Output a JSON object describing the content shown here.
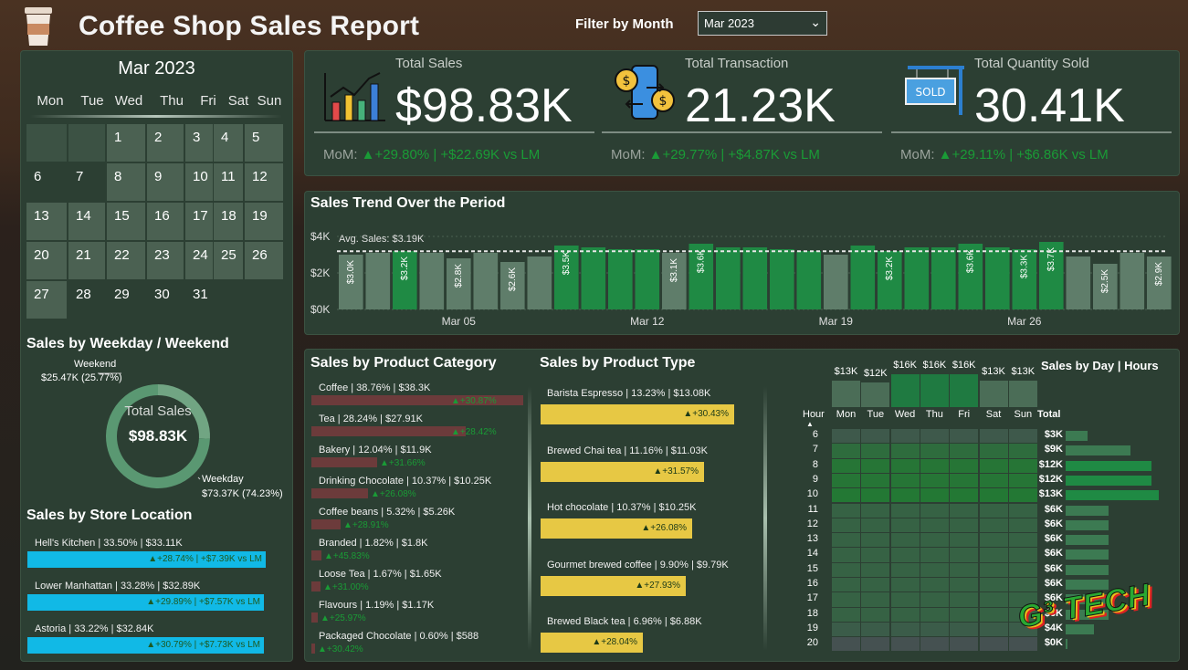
{
  "header": {
    "title": "Coffee Shop Sales Report",
    "filter_label": "Filter by Month",
    "filter_value": "Mar 2023"
  },
  "calendar": {
    "title": "Mar 2023",
    "weekdays": [
      "Mon",
      "Tue",
      "Wed",
      "Thu",
      "Fri",
      "Sat",
      "Sun"
    ],
    "days": [
      "1",
      "2",
      "3",
      "4",
      "5",
      "6",
      "7",
      "8",
      "9",
      "10",
      "11",
      "12",
      "13",
      "14",
      "15",
      "16",
      "17",
      "18",
      "19",
      "20",
      "21",
      "22",
      "23",
      "24",
      "25",
      "26",
      "27",
      "28",
      "29",
      "30",
      "31"
    ]
  },
  "kpis": [
    {
      "label": "Total Sales",
      "value": "$98.83K",
      "mom_prefix": "MoM:",
      "mom_pct": "▲+29.80%",
      "mom_abs": "| +$22.69K vs LM"
    },
    {
      "label": "Total Transaction",
      "value": "21.23K",
      "mom_prefix": "MoM:",
      "mom_pct": "▲+29.77%",
      "mom_abs": "| +$4.87K vs LM"
    },
    {
      "label": "Total Quantity Sold",
      "value": "30.41K",
      "mom_prefix": "MoM:",
      "mom_pct": "▲+29.11%",
      "mom_abs": "| +$6.86K vs LM"
    }
  ],
  "sold_sign_text": "SOLD",
  "trend": {
    "title": "Sales Trend Over the Period",
    "avg_label": "Avg. Sales: $3.19K",
    "y_ticks": [
      "$4K",
      "$2K",
      "$0K"
    ],
    "x_ticks": [
      "Mar 05",
      "Mar 12",
      "Mar 19",
      "Mar 26"
    ]
  },
  "chart_data": [
    {
      "type": "bar",
      "title": "Sales Trend Over the Period",
      "ylim": [
        0,
        4
      ],
      "avg": 3.19,
      "categories": [
        "1",
        "2",
        "3",
        "4",
        "5",
        "6",
        "7",
        "8",
        "9",
        "10",
        "11",
        "12",
        "13",
        "14",
        "15",
        "16",
        "17",
        "18",
        "19",
        "20",
        "21",
        "22",
        "23",
        "24",
        "25",
        "26",
        "27",
        "28",
        "29",
        "30",
        "31"
      ],
      "values": [
        3.0,
        3.1,
        3.2,
        3.1,
        2.8,
        3.1,
        2.6,
        2.9,
        3.5,
        3.4,
        3.3,
        3.3,
        3.1,
        3.6,
        3.4,
        3.4,
        3.3,
        3.2,
        3.0,
        3.5,
        3.2,
        3.4,
        3.4,
        3.6,
        3.4,
        3.3,
        3.7,
        2.9,
        2.5,
        3.1,
        2.9
      ],
      "labels": {
        "1": "$3.0K",
        "3": "$3.2K",
        "5": "$2.8K",
        "7": "$2.6K",
        "9": "$3.5K",
        "13": "$3.1K",
        "14": "$3.6K",
        "21": "$3.2K",
        "24": "$3.6K",
        "26": "$3.3K",
        "27": "$3.7K",
        "29": "$2.5K",
        "31": "$2.9K"
      },
      "x_ticks": [
        "Mar 05",
        "Mar 12",
        "Mar 19",
        "Mar 26"
      ]
    },
    {
      "type": "pie",
      "title": "Sales by Weekday / Weekend",
      "center_label": "Total Sales",
      "center_value": "$98.83K",
      "slices": [
        {
          "name": "Weekend",
          "value": 25.47,
          "label": "$25.47K (25.77%)"
        },
        {
          "name": "Weekday",
          "value": 73.37,
          "label": "$73.37K (74.23%)"
        }
      ]
    },
    {
      "type": "bar",
      "title": "Sales by Product Category",
      "items": [
        {
          "label": "Coffee | 38.76% | $38.3K",
          "value": 38.3,
          "delta": "▲+30.87%"
        },
        {
          "label": "Tea | 28.24% | $27.91K",
          "value": 27.91,
          "delta": "▲+28.42%"
        },
        {
          "label": "Bakery | 12.04% | $11.9K",
          "value": 11.9,
          "delta": "▲+31.66%"
        },
        {
          "label": "Drinking Chocolate | 10.37% | $10.25K",
          "value": 10.25,
          "delta": "▲+26.08%"
        },
        {
          "label": "Coffee beans | 5.32% | $5.26K",
          "value": 5.26,
          "delta": "▲+28.91%"
        },
        {
          "label": "Branded | 1.82% | $1.8K",
          "value": 1.8,
          "delta": "▲+45.83%"
        },
        {
          "label": "Loose Tea | 1.67% | $1.65K",
          "value": 1.65,
          "delta": "▲+31.00%"
        },
        {
          "label": "Flavours | 1.19% | $1.17K",
          "value": 1.17,
          "delta": "▲+25.97%"
        },
        {
          "label": "Packaged Chocolate | 0.60% | $588",
          "value": 0.588,
          "delta": "▲+30.42%"
        }
      ]
    },
    {
      "type": "bar",
      "title": "Sales by Product Type",
      "items": [
        {
          "label": "Barista Espresso | 13.23% | $13.08K",
          "value": 13.08,
          "delta": "▲+30.43%"
        },
        {
          "label": "Brewed Chai tea | 11.16% | $11.03K",
          "value": 11.03,
          "delta": "▲+31.57%"
        },
        {
          "label": "Hot chocolate | 10.37% | $10.25K",
          "value": 10.25,
          "delta": "▲+26.08%"
        },
        {
          "label": "Gourmet brewed coffee | 9.90% | $9.79K",
          "value": 9.79,
          "delta": "▲+27.93%"
        },
        {
          "label": "Brewed Black tea | 6.96% | $6.88K",
          "value": 6.88,
          "delta": "▲+28.04%"
        }
      ]
    },
    {
      "type": "bar",
      "title": "Sales by Store Location",
      "items": [
        {
          "label": "Hell's Kitchen | 33.50% | $33.11K",
          "value": 33.11,
          "delta": "▲+28.74% | +$7.39K vs LM"
        },
        {
          "label": "Lower Manhattan | 33.28% | $32.89K",
          "value": 32.89,
          "delta": "▲+29.89% | +$7.57K vs LM"
        },
        {
          "label": "Astoria | 33.22% | $32.84K",
          "value": 32.84,
          "delta": "▲+30.79% | +$7.73K vs LM"
        }
      ]
    },
    {
      "type": "heatmap",
      "title": "Sales by Day | Hours",
      "days": [
        "Mon",
        "Tue",
        "Wed",
        "Thu",
        "Fri",
        "Sat",
        "Sun"
      ],
      "day_totals": [
        "$13K",
        "$12K",
        "$16K",
        "$16K",
        "$16K",
        "$13K",
        "$13K"
      ],
      "day_values": [
        13,
        12,
        16,
        16,
        16,
        13,
        13
      ],
      "hours": [
        "6",
        "7",
        "8",
        "9",
        "10",
        "11",
        "12",
        "13",
        "14",
        "15",
        "16",
        "17",
        "18",
        "19",
        "20"
      ],
      "hour_totals": [
        "$3K",
        "$9K",
        "$12K",
        "$12K",
        "$13K",
        "$6K",
        "$6K",
        "$6K",
        "$6K",
        "$6K",
        "$6K",
        "$6K",
        "$6K",
        "$4K",
        "$0K"
      ],
      "hour_values": [
        3,
        9,
        12,
        12,
        13,
        6,
        6,
        6,
        6,
        6,
        6,
        6,
        6,
        4,
        0.3
      ]
    }
  ],
  "sections": {
    "weekday": "Sales by Weekday / Weekend",
    "weekend_name": "Weekend",
    "weekend_value": "$25.47K (25.77%)",
    "weekday_name": "Weekday",
    "weekday_value": "$73.37K (74.23%)",
    "donut_label": "Total Sales",
    "donut_value": "$98.83K",
    "location": "Sales by Store Location",
    "category": "Sales by Product Category",
    "type": "Sales by Product Type",
    "heatmap": "Sales by Day | Hours",
    "hour_header": "Hour",
    "total_header": "Total"
  },
  "logo": {
    "text": "G³ TECH"
  },
  "colors": {
    "accent_green": "#1f8a44",
    "positive": "#1a9b36",
    "category_bar": "#6c3b3b",
    "type_bar": "#e7c844",
    "location_bar": "#11b9e6"
  }
}
